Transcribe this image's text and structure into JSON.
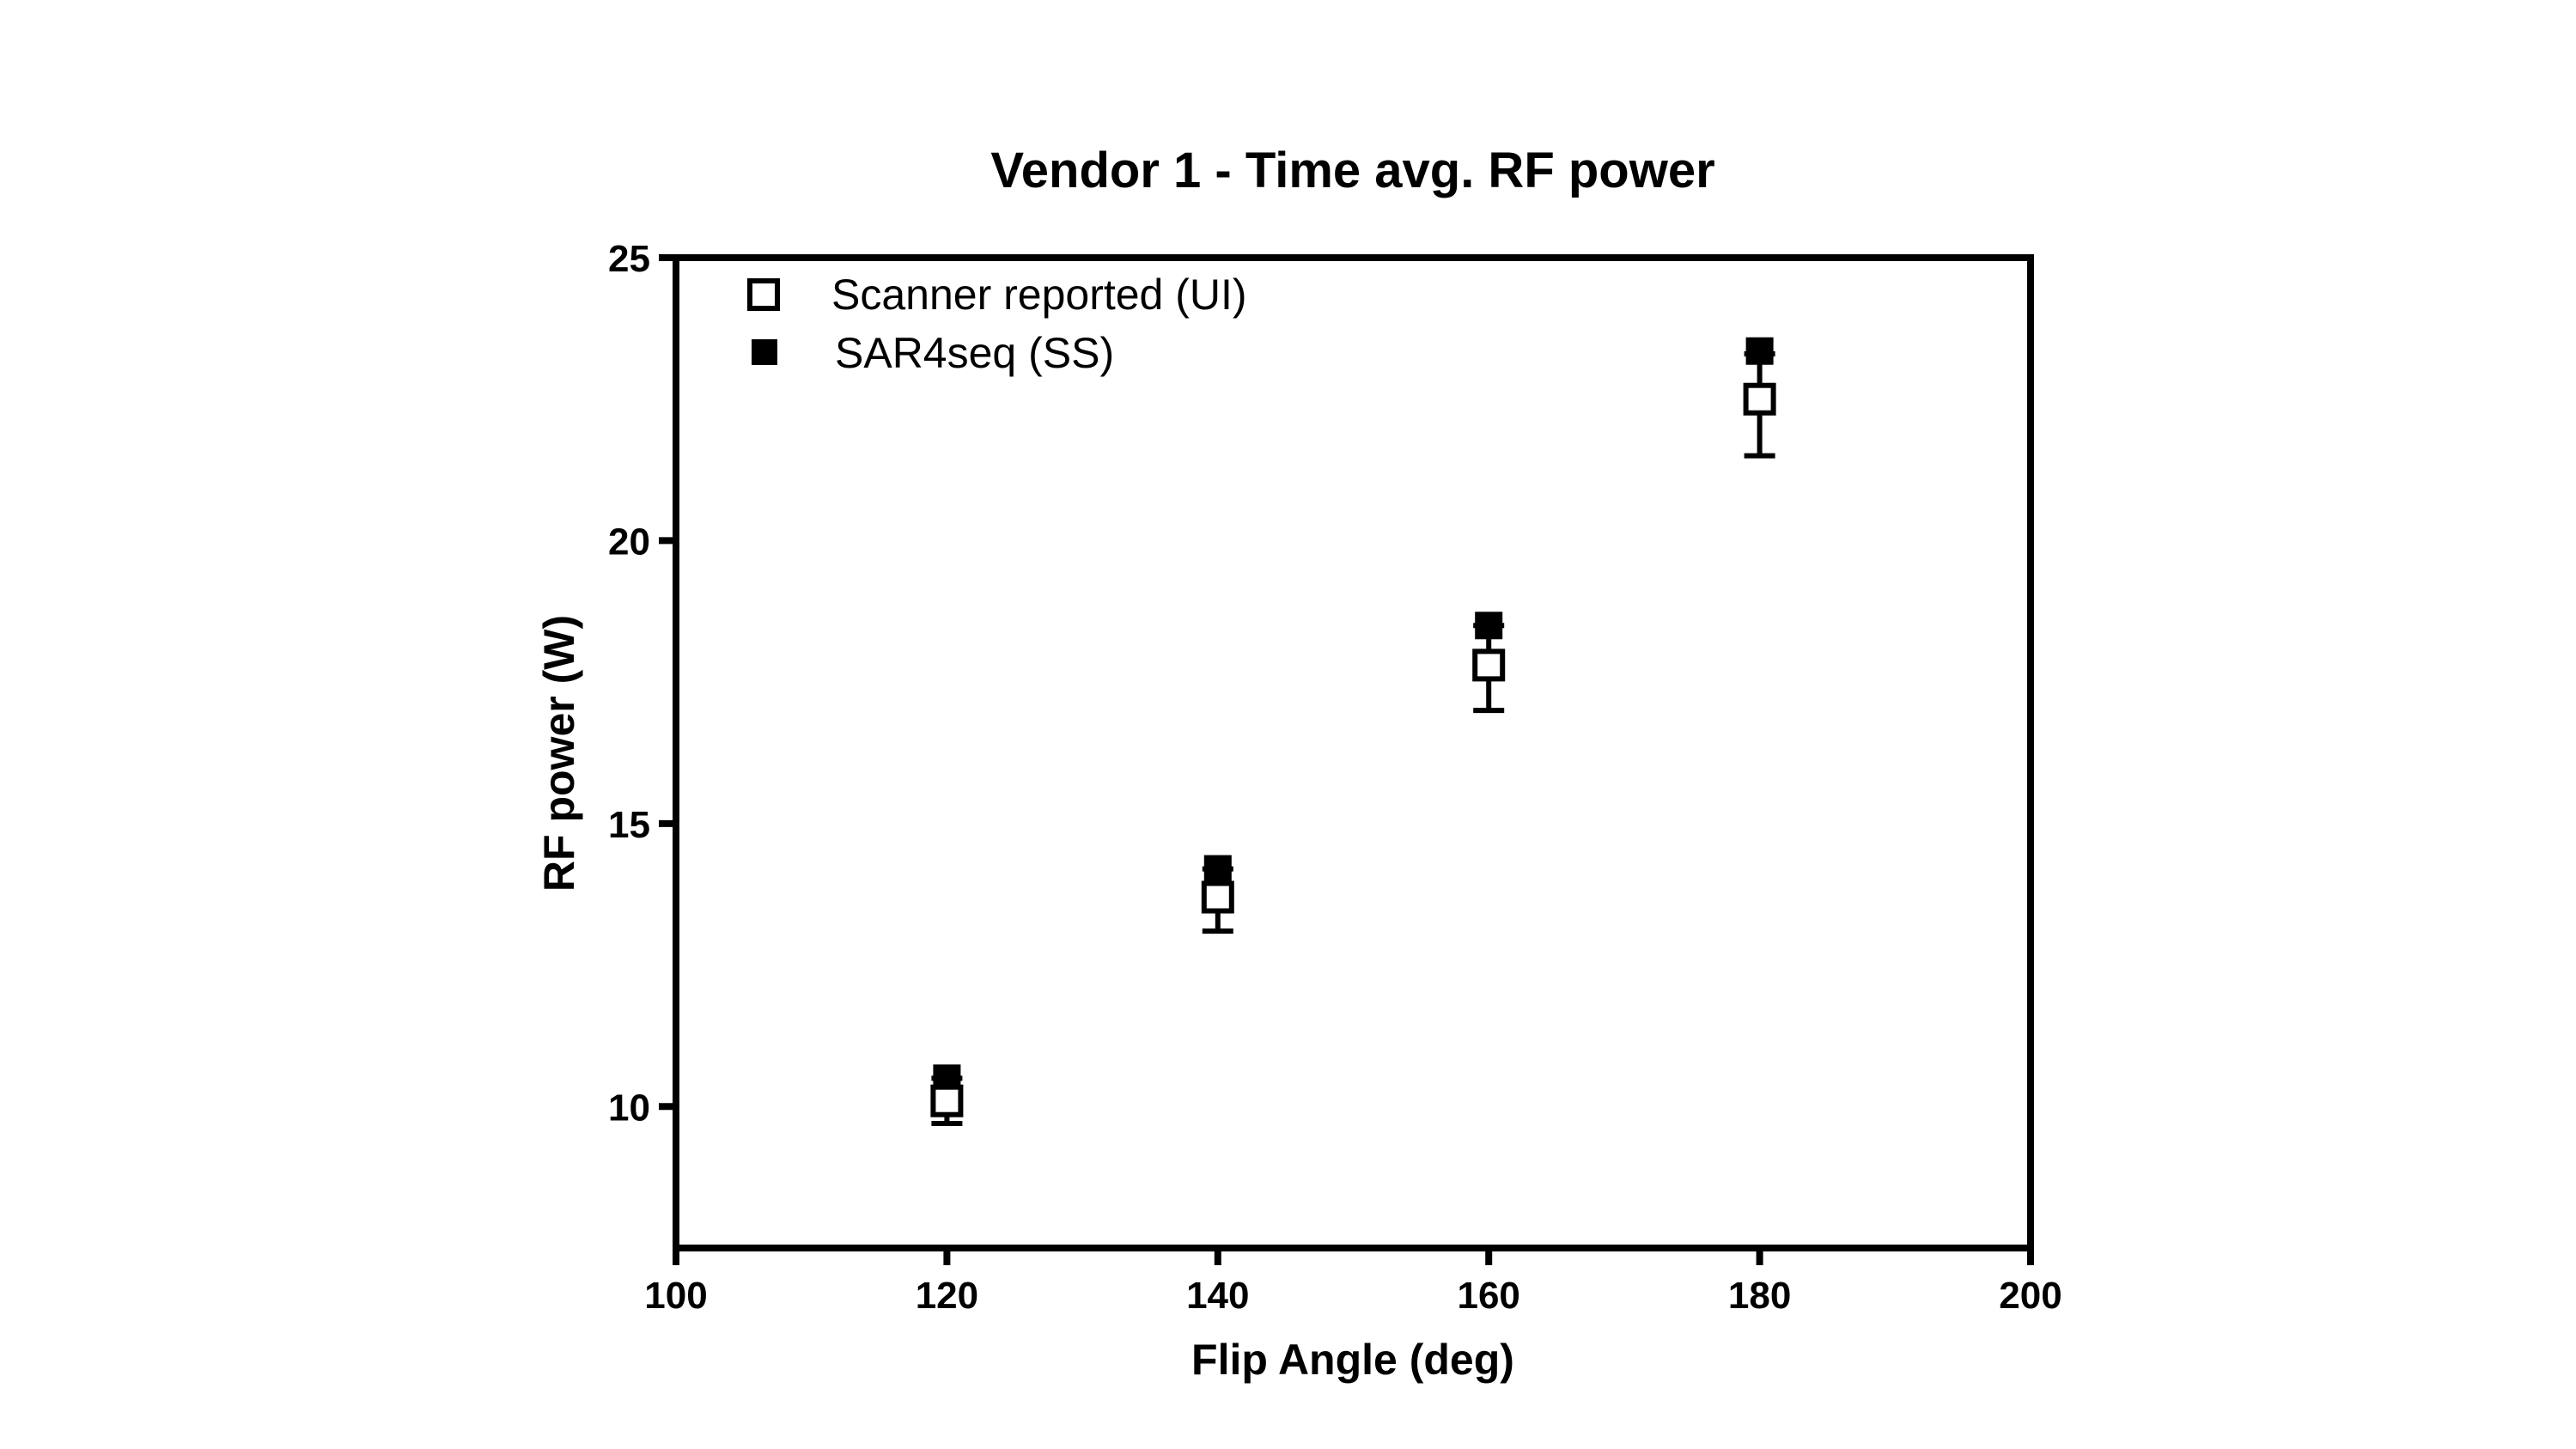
{
  "chart_data": {
    "type": "scatter",
    "title": "Vendor 1 - Time avg. RF power",
    "xlabel": "Flip Angle (deg)",
    "ylabel": "RF power (W)",
    "xlim": [
      100,
      200
    ],
    "ylim": [
      7.5,
      25
    ],
    "xticks": [
      100,
      120,
      140,
      160,
      180,
      200
    ],
    "yticks": [
      10,
      15,
      20,
      25
    ],
    "grid": false,
    "legend_position": "top-left",
    "series": [
      {
        "name": "Scanner reported (UI)",
        "marker": "open-square",
        "color": "#000000",
        "x": [
          120,
          140,
          160,
          180
        ],
        "y": [
          10.1,
          13.7,
          17.8,
          22.5
        ],
        "error_low": [
          9.7,
          13.1,
          17.0,
          21.5
        ],
        "error_high": [
          10.5,
          14.2,
          18.5,
          23.3
        ]
      },
      {
        "name": "SAR4seq (SS)",
        "marker": "filled-square",
        "color": "#000000",
        "x": [
          120,
          140,
          160,
          180
        ],
        "y": [
          10.5,
          14.2,
          18.5,
          23.35
        ]
      }
    ]
  }
}
